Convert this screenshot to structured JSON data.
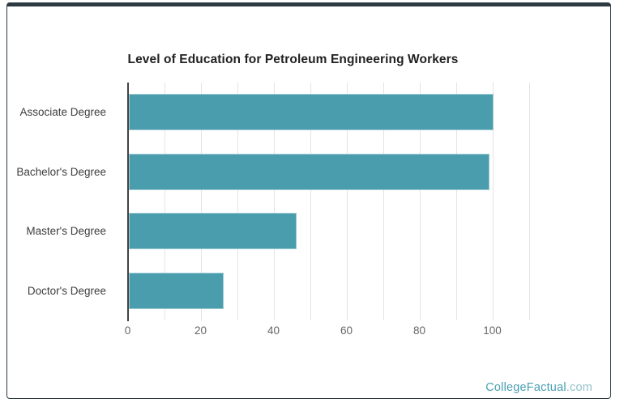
{
  "card": {
    "background": "#ffffff",
    "top_accent_color": "#2c3b42",
    "border_color": "#2c3b42"
  },
  "chart_data": {
    "type": "bar",
    "orientation": "horizontal",
    "title": "Level of Education for Petroleum Engineering Workers",
    "categories": [
      "Associate Degree",
      "Bachelor's Degree",
      "Master's Degree",
      "Doctor's Degree"
    ],
    "values": [
      100,
      99,
      46,
      26
    ],
    "xlabel": "",
    "ylabel": "",
    "xlim": [
      0,
      110
    ],
    "x_tick_values": [
      0,
      20,
      40,
      60,
      80,
      100
    ],
    "x_tick_labels": [
      "0",
      "20",
      "40",
      "60",
      "80",
      "100"
    ],
    "gridline_step": 10,
    "grid": true,
    "legend": "none",
    "bar_color": "#4a9dad",
    "grid_color": "#e4e4e4",
    "axis_color": "#424242",
    "title_color": "#212121",
    "category_label_color": "#3d3d3d",
    "tick_label_color": "#666666"
  },
  "watermark": {
    "brand": "CollegeFactual",
    "suffix": ".com",
    "brand_color": "#4aa0b2",
    "suffix_color": "#94c2cb"
  }
}
